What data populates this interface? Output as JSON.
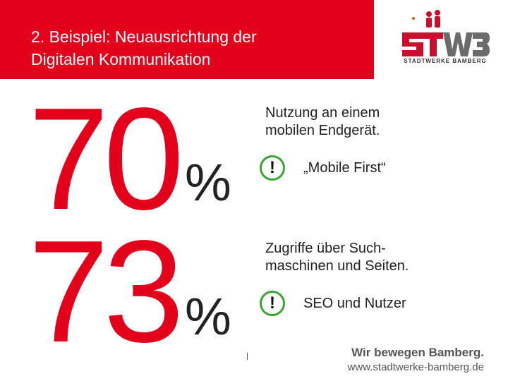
{
  "header": {
    "title_line1": "2. Beispiel: Neuausrichtung der",
    "title_line2": "Digitalen Kommunikation"
  },
  "logo": {
    "wordmark": "STWB",
    "caption": "STADTWERKE BAMBERG"
  },
  "stats": [
    {
      "number": "70",
      "unit": "%",
      "description_line1": "Nutzung an einem",
      "description_line2": "mobilen Endgerät.",
      "callout_icon": "exclamation-icon",
      "callout_symbol": "!",
      "callout_text": "„Mobile First“"
    },
    {
      "number": "73",
      "unit": "%",
      "description_line1": "Zugriffe über Such-",
      "description_line2": "maschinen und Seiten.",
      "callout_icon": "exclamation-icon",
      "callout_symbol": "!",
      "callout_text": "SEO und Nutzer"
    }
  ],
  "footer": {
    "divider": "|",
    "slogan": "Wir bewegen Bamberg.",
    "url": "www.stadtwerke-bamberg.de"
  },
  "colors": {
    "brand_red": "#e3001b",
    "callout_green": "#3aa535",
    "text_dark": "#222222",
    "text_grey": "#555555"
  }
}
